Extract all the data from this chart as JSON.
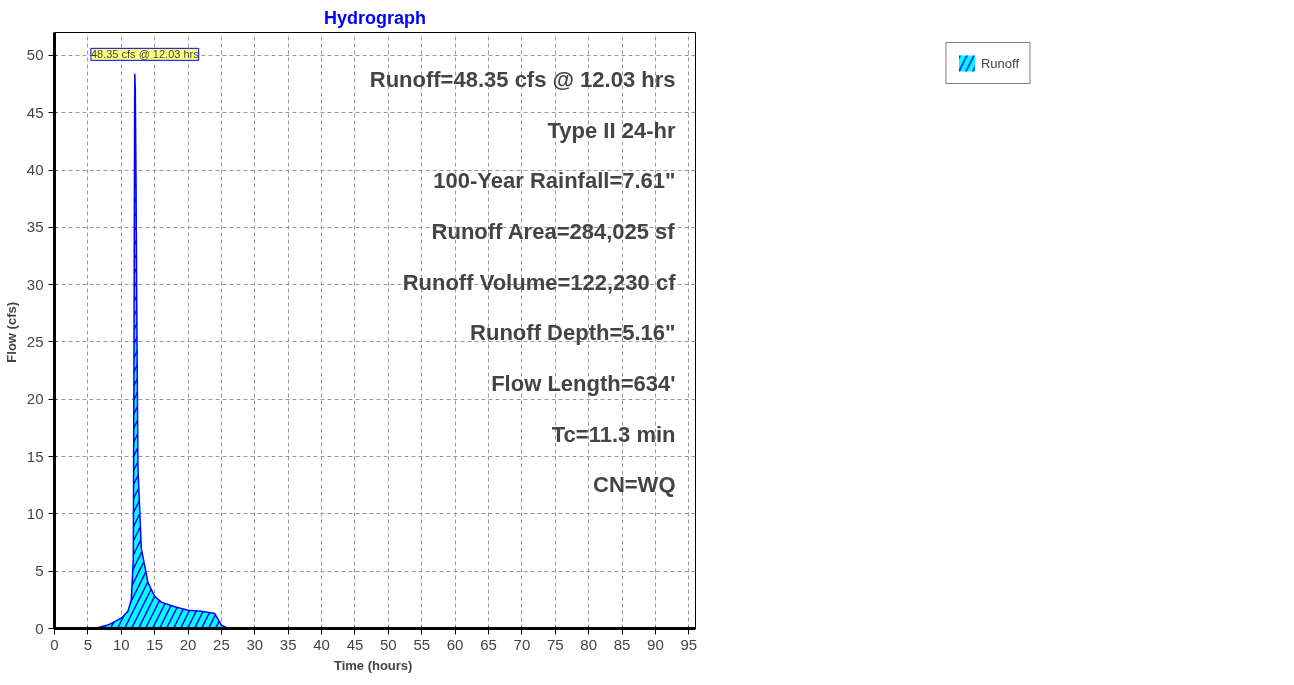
{
  "chart_data": {
    "type": "area",
    "title": "Hydrograph",
    "xlabel": "Time  (hours)",
    "ylabel": "Flow  (cfs)",
    "x": [
      0,
      5,
      6,
      8,
      10,
      11,
      11.5,
      11.8,
      11.9,
      12.0,
      12.03,
      12.1,
      12.2,
      12.3,
      12.5,
      13,
      14,
      15,
      16,
      18,
      20,
      22,
      24,
      25,
      26,
      30,
      40,
      50,
      60,
      70,
      80,
      90,
      95
    ],
    "series": [
      {
        "name": "Runoff",
        "color": "#00ffff",
        "values": [
          0,
          0,
          0,
          0.3,
          0.9,
          1.5,
          2.5,
          6,
          23,
          45,
          48.35,
          47,
          40,
          30,
          14,
          7,
          4,
          2.8,
          2.3,
          1.9,
          1.6,
          1.5,
          1.3,
          0.3,
          0,
          0,
          0,
          0,
          0,
          0,
          0,
          0,
          0
        ]
      }
    ],
    "xlim": [
      0,
      96
    ],
    "ylim": [
      0,
      52
    ],
    "xticks": [
      0,
      5,
      10,
      15,
      20,
      25,
      30,
      35,
      40,
      45,
      50,
      55,
      60,
      65,
      70,
      75,
      80,
      85,
      90,
      95
    ],
    "yticks": [
      0,
      5,
      10,
      15,
      20,
      25,
      30,
      35,
      40,
      45,
      50
    ],
    "grid": true,
    "legend": "top right",
    "annotations": [
      {
        "text": "48.35 cfs @ 12.03 hrs",
        "x": 12.03,
        "y": 48.35
      },
      "Runoff=48.35 cfs @ 12.03 hrs",
      "Type II 24-hr",
      "100-Year Rainfall=7.61\"",
      "Runoff Area=284,025 sf",
      "Runoff Volume=122,230 cf",
      "Runoff Depth=5.16\"",
      "Flow Length=634'",
      "Tc=11.3 min",
      "CN=WQ"
    ]
  }
}
